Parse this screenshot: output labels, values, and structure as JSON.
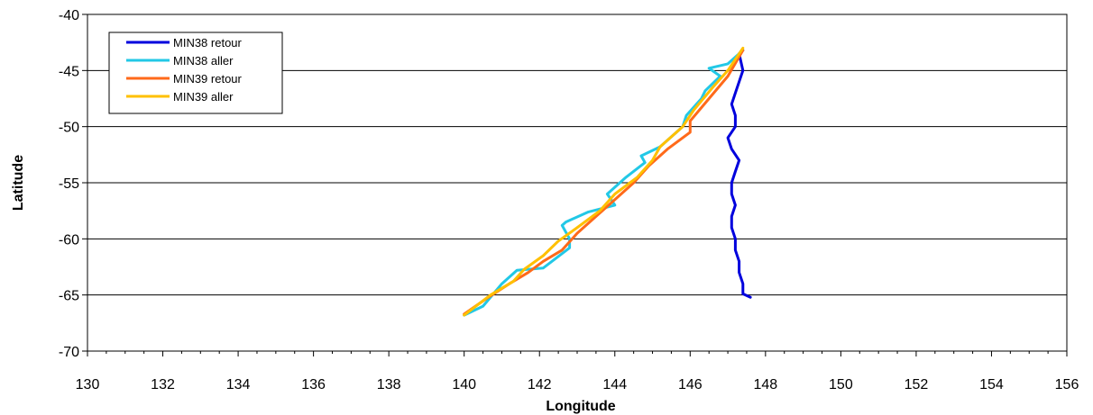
{
  "chart_data": {
    "type": "line",
    "title": "",
    "xlabel": "Longitude",
    "ylabel": "Latitude",
    "xlim": [
      130,
      156
    ],
    "ylim": [
      -70,
      -40
    ],
    "x_ticks": [
      130,
      132,
      134,
      136,
      138,
      140,
      142,
      144,
      146,
      148,
      150,
      152,
      154,
      156
    ],
    "y_ticks": [
      -40,
      -45,
      -50,
      -55,
      -60,
      -65,
      -70
    ],
    "grid": "horizontal",
    "legend_position": "top-left",
    "series": [
      {
        "name": "MIN38 retour",
        "color": "#0000dd",
        "x": [
          147.6,
          147.4,
          147.4,
          147.3,
          147.3,
          147.2,
          147.2,
          147.1,
          147.1,
          147.2,
          147.1,
          147.1,
          147.2,
          147.3,
          147.1,
          147.0,
          147.2,
          147.2,
          147.1,
          147.2,
          147.3,
          147.4,
          147.3,
          147.4
        ],
        "y": [
          -65.2,
          -64.9,
          -64.0,
          -63.0,
          -62.0,
          -61.0,
          -60.0,
          -59.0,
          -58.0,
          -57.0,
          -56.0,
          -55.0,
          -54.0,
          -53.0,
          -52.0,
          -51.0,
          -50.0,
          -49.0,
          -48.0,
          -47.0,
          -46.0,
          -45.0,
          -43.5,
          -43.2
        ]
      },
      {
        "name": "MIN38 aller",
        "color": "#22c8e6",
        "x": [
          140.0,
          140.5,
          141.0,
          141.4,
          142.1,
          142.8,
          142.8,
          142.6,
          142.7,
          143.3,
          144.0,
          143.8,
          144.3,
          144.8,
          144.7,
          145.2,
          145.8,
          145.9,
          146.3,
          146.4,
          146.8,
          146.5,
          147.0,
          147.4
        ],
        "y": [
          -66.8,
          -66.0,
          -64.0,
          -62.8,
          -62.6,
          -60.8,
          -60.0,
          -58.8,
          -58.5,
          -57.6,
          -57.0,
          -56.0,
          -54.5,
          -53.2,
          -52.6,
          -51.8,
          -50.0,
          -49.0,
          -47.5,
          -46.8,
          -45.5,
          -44.8,
          -44.4,
          -43.2
        ]
      },
      {
        "name": "MIN39 retour",
        "color": "#ff6a1a",
        "x": [
          140.0,
          140.6,
          141.2,
          141.7,
          142.1,
          142.6,
          143.0,
          143.5,
          144.0,
          144.5,
          144.9,
          145.4,
          146.0,
          146.0,
          146.5,
          147.0,
          147.4
        ],
        "y": [
          -66.7,
          -65.3,
          -64.0,
          -63.0,
          -62.0,
          -61.0,
          -59.5,
          -58.0,
          -56.5,
          -55.0,
          -53.5,
          -52.0,
          -50.5,
          -49.5,
          -47.5,
          -45.5,
          -43.2
        ]
      },
      {
        "name": "MIN39 aller",
        "color": "#ffc000",
        "x": [
          140.0,
          140.7,
          141.3,
          141.6,
          142.1,
          142.5,
          143.0,
          143.6,
          144.0,
          144.6,
          145.0,
          145.2,
          145.8,
          146.1,
          146.6,
          147.0,
          147.4
        ],
        "y": [
          -66.8,
          -65.0,
          -63.8,
          -62.7,
          -61.5,
          -60.2,
          -59.0,
          -57.5,
          -56.0,
          -54.5,
          -53.0,
          -51.8,
          -50.0,
          -48.5,
          -46.5,
          -45.0,
          -43.0
        ]
      }
    ]
  }
}
